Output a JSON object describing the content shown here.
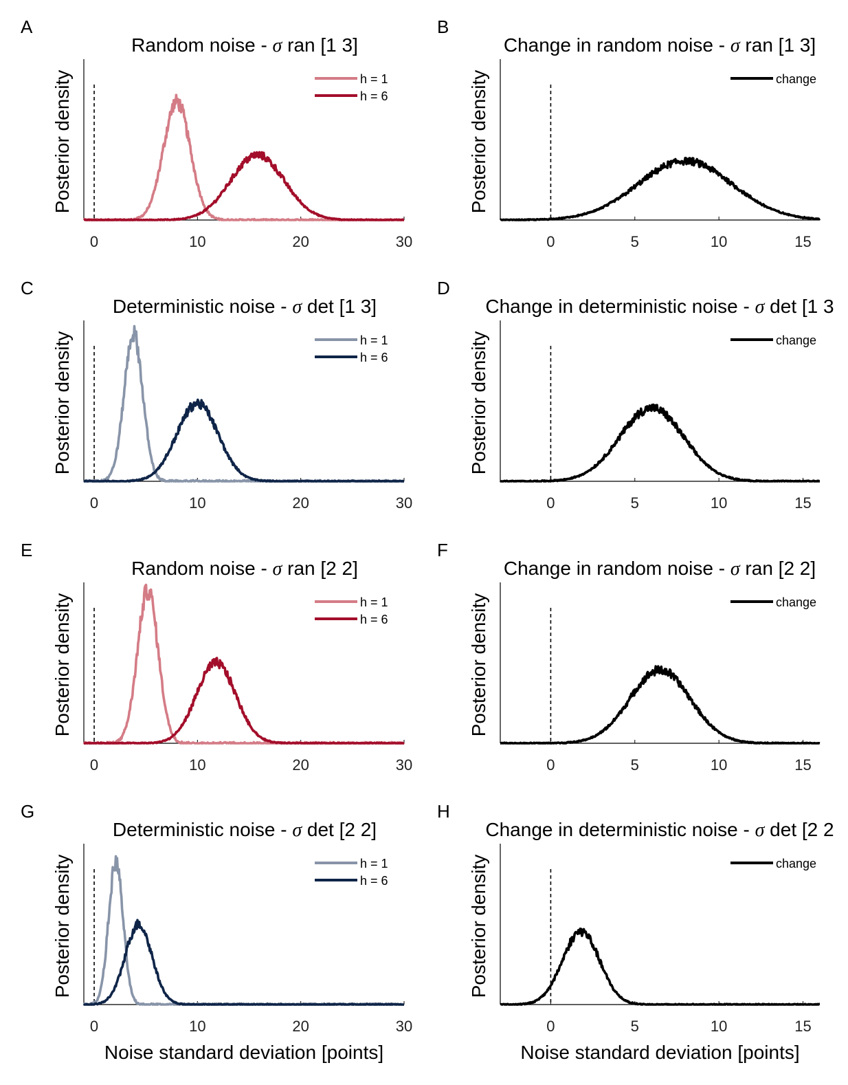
{
  "figure": {
    "shared_xlabel": "Noise standard deviation [points]",
    "ylabel": "Posterior density"
  },
  "colors": {
    "random_h1": "#d47c86",
    "random_h6": "#a30e2a",
    "det_h1": "#8894a8",
    "det_h6": "#0f2548",
    "change": "#000000"
  },
  "chart_data": [
    {
      "panel": "A",
      "type": "line",
      "title_prefix": "Random noise - ",
      "title_symbol": "σ",
      "title_suffix": " ran [1 3]",
      "ylabel": "Posterior density",
      "xlabel": "",
      "xlim": [
        -1,
        30
      ],
      "ylim": [
        0,
        1.35
      ],
      "xticks": [
        0,
        10,
        20,
        30
      ],
      "legend": "top-right",
      "zero_line": true,
      "series": [
        {
          "name": "h = 1",
          "color": "#d47c86",
          "peak": 8.0,
          "sd": 1.3,
          "height": 1.0
        },
        {
          "name": "h = 6",
          "color": "#a30e2a",
          "peak": 15.8,
          "sd": 2.6,
          "height": 0.55
        }
      ]
    },
    {
      "panel": "B",
      "type": "line",
      "title_prefix": "Change in random noise - ",
      "title_symbol": "σ",
      "title_suffix": " ran [1 3]",
      "ylabel": "Posterior density",
      "xlabel": "",
      "xlim": [
        -3,
        16
      ],
      "ylim": [
        0,
        1.35
      ],
      "xticks": [
        0,
        5,
        10,
        15
      ],
      "legend": "top-right",
      "zero_line": true,
      "series": [
        {
          "name": "change",
          "color": "#000000",
          "peak": 8.0,
          "sd": 2.8,
          "height": 0.5
        }
      ]
    },
    {
      "panel": "C",
      "type": "line",
      "title_prefix": "Deterministic noise - ",
      "title_symbol": "σ",
      "title_suffix": " det [1 3]",
      "ylabel": "Posterior density",
      "xlabel": "",
      "xlim": [
        -1,
        30
      ],
      "ylim": [
        0,
        1.35
      ],
      "xticks": [
        0,
        10,
        20,
        30
      ],
      "legend": "top-right",
      "zero_line": true,
      "series": [
        {
          "name": "h = 1",
          "color": "#8894a8",
          "peak": 3.8,
          "sd": 0.9,
          "height": 1.25
        },
        {
          "name": "h = 6",
          "color": "#0f2548",
          "peak": 10.0,
          "sd": 2.0,
          "height": 0.66
        }
      ]
    },
    {
      "panel": "D",
      "type": "line",
      "title_prefix": "Change in deterministic noise - ",
      "title_symbol": "σ",
      "title_suffix": " det [1 3",
      "ylabel": "Posterior density",
      "xlabel": "",
      "xlim": [
        -3,
        16
      ],
      "ylim": [
        0,
        1.35
      ],
      "xticks": [
        0,
        5,
        10,
        15
      ],
      "legend": "top-right",
      "zero_line": true,
      "series": [
        {
          "name": "change",
          "color": "#000000",
          "peak": 6.0,
          "sd": 1.9,
          "height": 0.62
        }
      ]
    },
    {
      "panel": "E",
      "type": "line",
      "title_prefix": "Random noise - ",
      "title_symbol": "σ",
      "title_suffix": " ran [2 2]",
      "ylabel": "Posterior density",
      "xlabel": "",
      "xlim": [
        -1,
        30
      ],
      "ylim": [
        0,
        1.35
      ],
      "xticks": [
        0,
        10,
        20,
        30
      ],
      "legend": "top-right",
      "zero_line": true,
      "series": [
        {
          "name": "h = 1",
          "color": "#d47c86",
          "peak": 5.2,
          "sd": 1.0,
          "height": 1.3
        },
        {
          "name": "h = 6",
          "color": "#a30e2a",
          "peak": 11.8,
          "sd": 1.9,
          "height": 0.68
        }
      ]
    },
    {
      "panel": "F",
      "type": "line",
      "title_prefix": "Change in random noise - ",
      "title_symbol": "σ",
      "title_suffix": " ran [2 2]",
      "ylabel": "Posterior density",
      "xlabel": "",
      "xlim": [
        -3,
        16
      ],
      "ylim": [
        0,
        1.35
      ],
      "xticks": [
        0,
        5,
        10,
        15
      ],
      "legend": "top-right",
      "zero_line": true,
      "series": [
        {
          "name": "change",
          "color": "#000000",
          "peak": 6.5,
          "sd": 1.8,
          "height": 0.62
        }
      ]
    },
    {
      "panel": "G",
      "type": "line",
      "title_prefix": "Deterministic noise - ",
      "title_symbol": "σ",
      "title_suffix": " det [2 2]",
      "ylabel": "Posterior density",
      "xlabel": "Noise standard deviation [points]",
      "xlim": [
        -1,
        30
      ],
      "ylim": [
        0,
        1.35
      ],
      "xticks": [
        0,
        10,
        20,
        30
      ],
      "legend": "top-right",
      "zero_line": true,
      "series": [
        {
          "name": "h = 1",
          "color": "#8894a8",
          "peak": 2.1,
          "sd": 0.7,
          "height": 1.2
        },
        {
          "name": "h = 6",
          "color": "#0f2548",
          "peak": 4.3,
          "sd": 1.3,
          "height": 0.68
        }
      ]
    },
    {
      "panel": "H",
      "type": "line",
      "title_prefix": "Change in deterministic noise - ",
      "title_symbol": "σ",
      "title_suffix": " det [2 2",
      "ylabel": "Posterior density",
      "xlabel": "Noise standard deviation [points]",
      "xlim": [
        -3,
        16
      ],
      "ylim": [
        0,
        1.35
      ],
      "xticks": [
        0,
        5,
        10,
        15
      ],
      "legend": "top-right",
      "zero_line": true,
      "series": [
        {
          "name": "change",
          "color": "#000000",
          "peak": 1.8,
          "sd": 1.1,
          "height": 0.62
        }
      ]
    }
  ]
}
